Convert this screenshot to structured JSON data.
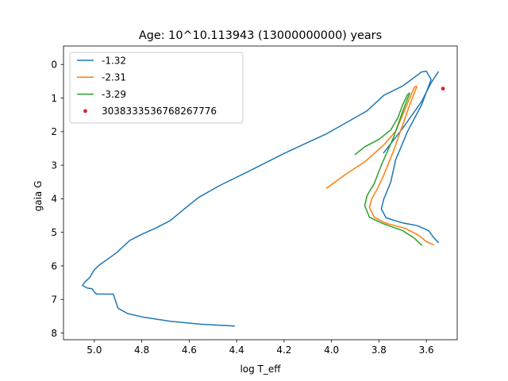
{
  "chart_data": {
    "type": "line",
    "title": "Age: 10^10.113943 (13000000000) years",
    "xlabel": "log T_eff",
    "ylabel": "gaia G",
    "xlim": [
      5.13,
      3.47
    ],
    "ylim": [
      8.2,
      -0.55
    ],
    "x_inverted": true,
    "y_inverted": true,
    "xticks": [
      "5.0",
      "4.8",
      "4.6",
      "4.4",
      "4.2",
      "4.0",
      "3.8",
      "3.6"
    ],
    "yticks": [
      "0",
      "1",
      "2",
      "3",
      "4",
      "5",
      "6",
      "7",
      "8"
    ],
    "legend_position": "upper left",
    "series": [
      {
        "name": "-1.32",
        "color": "#1f77b4",
        "kind": "line",
        "points": [
          [
            4.41,
            7.79
          ],
          [
            4.55,
            7.74
          ],
          [
            4.68,
            7.65
          ],
          [
            4.8,
            7.52
          ],
          [
            4.86,
            7.42
          ],
          [
            4.9,
            7.26
          ],
          [
            4.91,
            7.05
          ],
          [
            4.92,
            6.84
          ],
          [
            4.97,
            6.84
          ],
          [
            4.99,
            6.84
          ],
          [
            5.0,
            6.78
          ],
          [
            5.01,
            6.68
          ],
          [
            5.03,
            6.66
          ],
          [
            5.05,
            6.58
          ],
          [
            5.04,
            6.48
          ],
          [
            5.02,
            6.35
          ],
          [
            5.0,
            6.12
          ],
          [
            4.98,
            5.98
          ],
          [
            4.91,
            5.63
          ],
          [
            4.85,
            5.24
          ],
          [
            4.8,
            5.06
          ],
          [
            4.74,
            4.87
          ],
          [
            4.68,
            4.65
          ],
          [
            4.62,
            4.3
          ],
          [
            4.56,
            3.96
          ],
          [
            4.47,
            3.6
          ],
          [
            4.36,
            3.22
          ],
          [
            4.2,
            2.65
          ],
          [
            4.02,
            2.06
          ],
          [
            3.85,
            1.38
          ],
          [
            3.78,
            0.92
          ],
          [
            3.7,
            0.64
          ],
          [
            3.62,
            0.22
          ],
          [
            3.6,
            0.2
          ],
          [
            3.58,
            0.45
          ],
          [
            3.62,
            1.2
          ],
          [
            3.68,
            2.0
          ],
          [
            3.73,
            2.85
          ],
          [
            3.75,
            3.5
          ],
          [
            3.78,
            4.02
          ],
          [
            3.79,
            4.3
          ],
          [
            3.77,
            4.57
          ],
          [
            3.7,
            4.72
          ],
          [
            3.64,
            4.8
          ],
          [
            3.59,
            4.95
          ],
          [
            3.57,
            5.15
          ],
          [
            3.55,
            5.3
          ]
        ]
      },
      {
        "name": "-1.32",
        "color": "#1f77b4",
        "kind": "line",
        "points": [
          [
            3.78,
            2.63
          ],
          [
            3.7,
            1.9
          ],
          [
            3.62,
            1.1
          ],
          [
            3.58,
            0.55
          ],
          [
            3.55,
            0.22
          ]
        ]
      },
      {
        "name": "-2.31",
        "color": "#ff7f0e",
        "kind": "line",
        "points": [
          [
            4.02,
            3.68
          ],
          [
            3.94,
            3.27
          ],
          [
            3.86,
            2.9
          ],
          [
            3.78,
            2.4
          ],
          [
            3.73,
            2.0
          ],
          [
            3.7,
            1.5
          ],
          [
            3.67,
            1.0
          ],
          [
            3.65,
            0.67
          ],
          [
            3.64,
            0.65
          ],
          [
            3.67,
            1.2
          ],
          [
            3.7,
            1.8
          ],
          [
            3.74,
            2.6
          ],
          [
            3.78,
            3.3
          ],
          [
            3.81,
            3.75
          ],
          [
            3.83,
            4.0
          ],
          [
            3.84,
            4.25
          ],
          [
            3.82,
            4.55
          ],
          [
            3.77,
            4.73
          ],
          [
            3.69,
            4.88
          ],
          [
            3.63,
            5.1
          ],
          [
            3.6,
            5.28
          ],
          [
            3.57,
            5.37
          ]
        ]
      },
      {
        "name": "-3.29",
        "color": "#2ca02c",
        "kind": "line",
        "points": [
          [
            3.9,
            2.68
          ],
          [
            3.86,
            2.45
          ],
          [
            3.8,
            2.23
          ],
          [
            3.75,
            1.95
          ],
          [
            3.72,
            1.58
          ],
          [
            3.7,
            1.2
          ],
          [
            3.68,
            0.9
          ],
          [
            3.67,
            0.85
          ],
          [
            3.7,
            1.4
          ],
          [
            3.74,
            2.2
          ],
          [
            3.79,
            3.0
          ],
          [
            3.82,
            3.55
          ],
          [
            3.85,
            3.9
          ],
          [
            3.86,
            4.2
          ],
          [
            3.84,
            4.55
          ],
          [
            3.78,
            4.75
          ],
          [
            3.7,
            4.95
          ],
          [
            3.65,
            5.18
          ],
          [
            3.62,
            5.38
          ]
        ]
      },
      {
        "name": "3038333536768267776",
        "color": "#d62728",
        "kind": "point",
        "points": [
          [
            3.53,
            0.72
          ]
        ]
      }
    ],
    "legend": [
      {
        "label": "-1.32",
        "color": "#1f77b4",
        "kind": "line"
      },
      {
        "label": "-2.31",
        "color": "#ff7f0e",
        "kind": "line"
      },
      {
        "label": "-3.29",
        "color": "#2ca02c",
        "kind": "line"
      },
      {
        "label": "3038333536768267776",
        "color": "#d62728",
        "kind": "point"
      }
    ]
  }
}
